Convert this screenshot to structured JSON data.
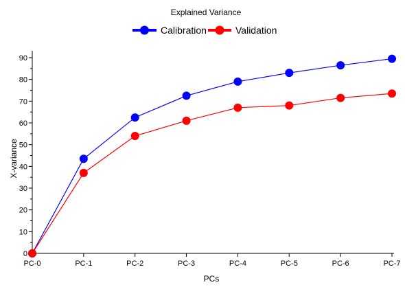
{
  "chart_data": {
    "type": "line",
    "title": "Explained Variance",
    "xlabel": "PCs",
    "ylabel": "X-variance",
    "categories": [
      "PC-0",
      "PC-1",
      "PC-2",
      "PC-3",
      "PC-4",
      "PC-5",
      "PC-6",
      "PC-7"
    ],
    "series": [
      {
        "name": "Calibration",
        "color": "#0000ff",
        "values": [
          0,
          43.5,
          62.5,
          72.5,
          79,
          83,
          86.5,
          89.5
        ]
      },
      {
        "name": "Validation",
        "color": "#ff0000",
        "values": [
          0,
          37,
          54,
          61,
          67,
          68,
          71.5,
          73.5
        ]
      }
    ],
    "ylim": [
      0,
      90
    ],
    "yticks": [
      0,
      10,
      20,
      30,
      40,
      50,
      60,
      70,
      80,
      90
    ],
    "grid": false,
    "legend_position": "top-center"
  }
}
